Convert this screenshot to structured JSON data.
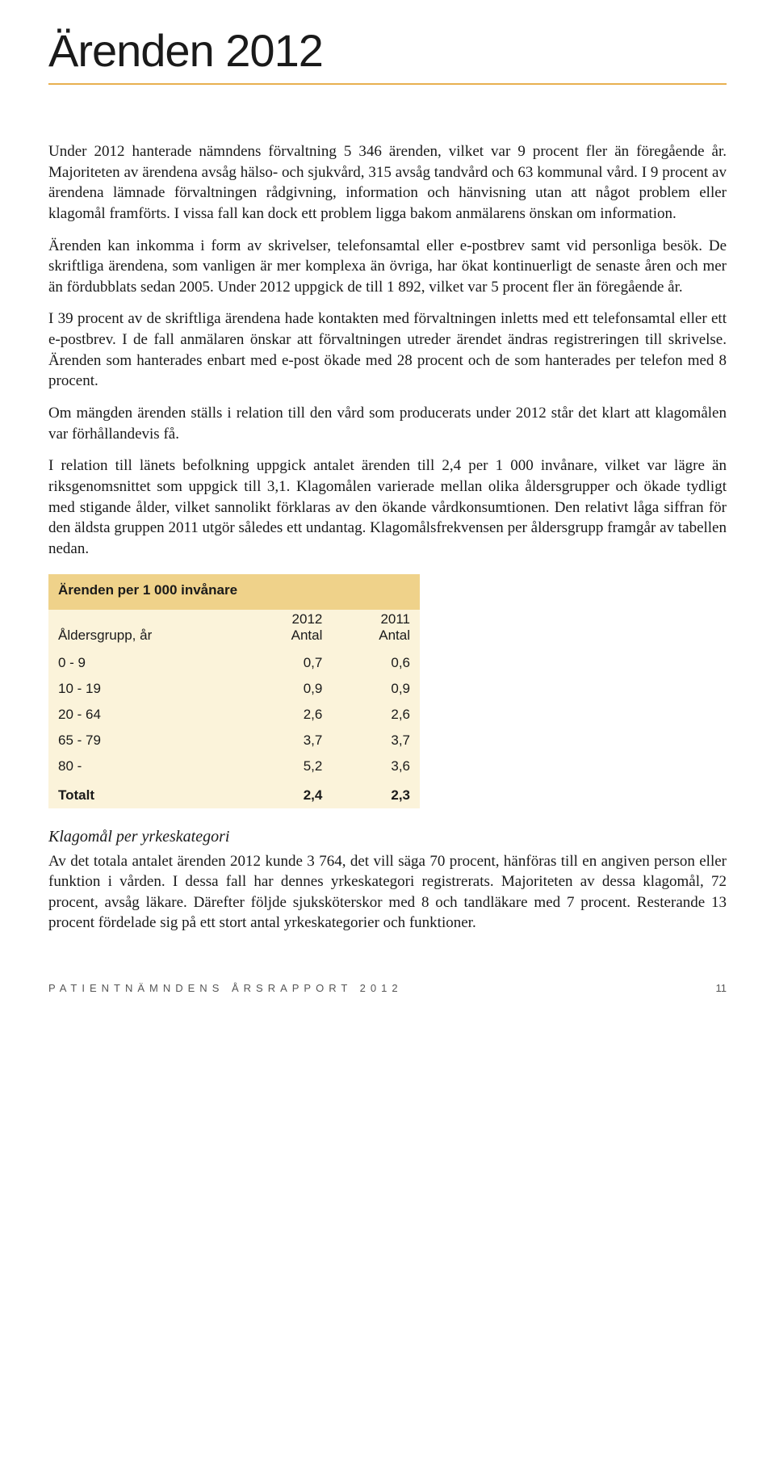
{
  "title": "Ärenden 2012",
  "paragraphs": {
    "p1": "Under 2012 hanterade nämndens förvaltning 5 346 ärenden, vilket var 9 procent fler än föregående år. Majoriteten av ärendena avsåg hälso- och sjukvård, 315 avsåg tandvård och 63 kommunal vård. I 9 procent av ärendena lämnade förvaltningen rådgivning, information och hänvisning utan att något problem eller klagomål framförts. I vissa fall kan dock ett problem ligga bakom anmälarens önskan om information.",
    "p2": "Ärenden kan inkomma i form av skrivelser, telefonsamtal eller e-postbrev samt vid personliga besök. De skriftliga ärendena, som vanligen är mer komplexa än övriga, har ökat kontinuerligt de senaste åren och mer än fördubblats sedan 2005. Under 2012 uppgick de till 1 892, vilket var 5 procent fler än föregående år.",
    "p3": "I 39 procent av de skriftliga ärendena hade kontakten med förvaltningen inletts med ett telefonsamtal eller ett e-postbrev. I de fall anmälaren önskar att förvaltningen utreder ärendet ändras registreringen till skrivelse. Ärenden som hanterades enbart med e-post ökade med 28 procent och de som hanterades per telefon med 8 procent.",
    "p4": "Om mängden ärenden ställs i relation till den vård som producerats under 2012 står det klart att klagomålen var förhållandevis få.",
    "p5": "I relation till länets befolkning uppgick antalet ärenden till 2,4 per 1 000 invånare, vilket var lägre än riksgenomsnittet som uppgick till 3,1. Klagomålen varierade mellan olika åldersgrupper och ökade tydligt med stigande ålder, vilket sannolikt förklaras av den ökande vårdkonsumtionen. Den relativt låga siffran för den äldsta gruppen 2011 utgör således ett undantag. Klagomålsfrekvensen per åldersgrupp framgår av tabellen nedan."
  },
  "table": {
    "title": "Ärenden per 1 000 invånare",
    "header_bg": "#efd28a",
    "body_bg": "#fbf3da",
    "col_left_label": "Åldersgrupp, år",
    "years": [
      "2012",
      "2011"
    ],
    "col_sub": "Antal",
    "rows": [
      {
        "label": "0 - 9",
        "v1": "0,7",
        "v2": "0,6"
      },
      {
        "label": "10 - 19",
        "v1": "0,9",
        "v2": "0,9"
      },
      {
        "label": "20 - 64",
        "v1": "2,6",
        "v2": "2,6"
      },
      {
        "label": "65 - 79",
        "v1": "3,7",
        "v2": "3,7"
      },
      {
        "label": "80 -",
        "v1": "5,2",
        "v2": "3,6"
      }
    ],
    "total": {
      "label": "Totalt",
      "v1": "2,4",
      "v2": "2,3"
    }
  },
  "subsection": {
    "heading": "Klagomål per yrkeskategori",
    "text": "Av det totala antalet ärenden 2012 kunde 3 764, det vill säga 70 procent, hänföras till en angiven person eller funktion i vården. I dessa fall har dennes yrkeskategori registrerats. Majoriteten av dessa klagomål, 72 procent, avsåg läkare. Därefter följde sjuksköterskor med 8 och tandläkare med 7 procent. Resterande 13 procent fördelade sig på ett stort antal yrkeskategorier och funktioner."
  },
  "footer": {
    "text": "PATIENTNÄMNDENS ÅRSRAPPORT 2012",
    "page": "11"
  }
}
